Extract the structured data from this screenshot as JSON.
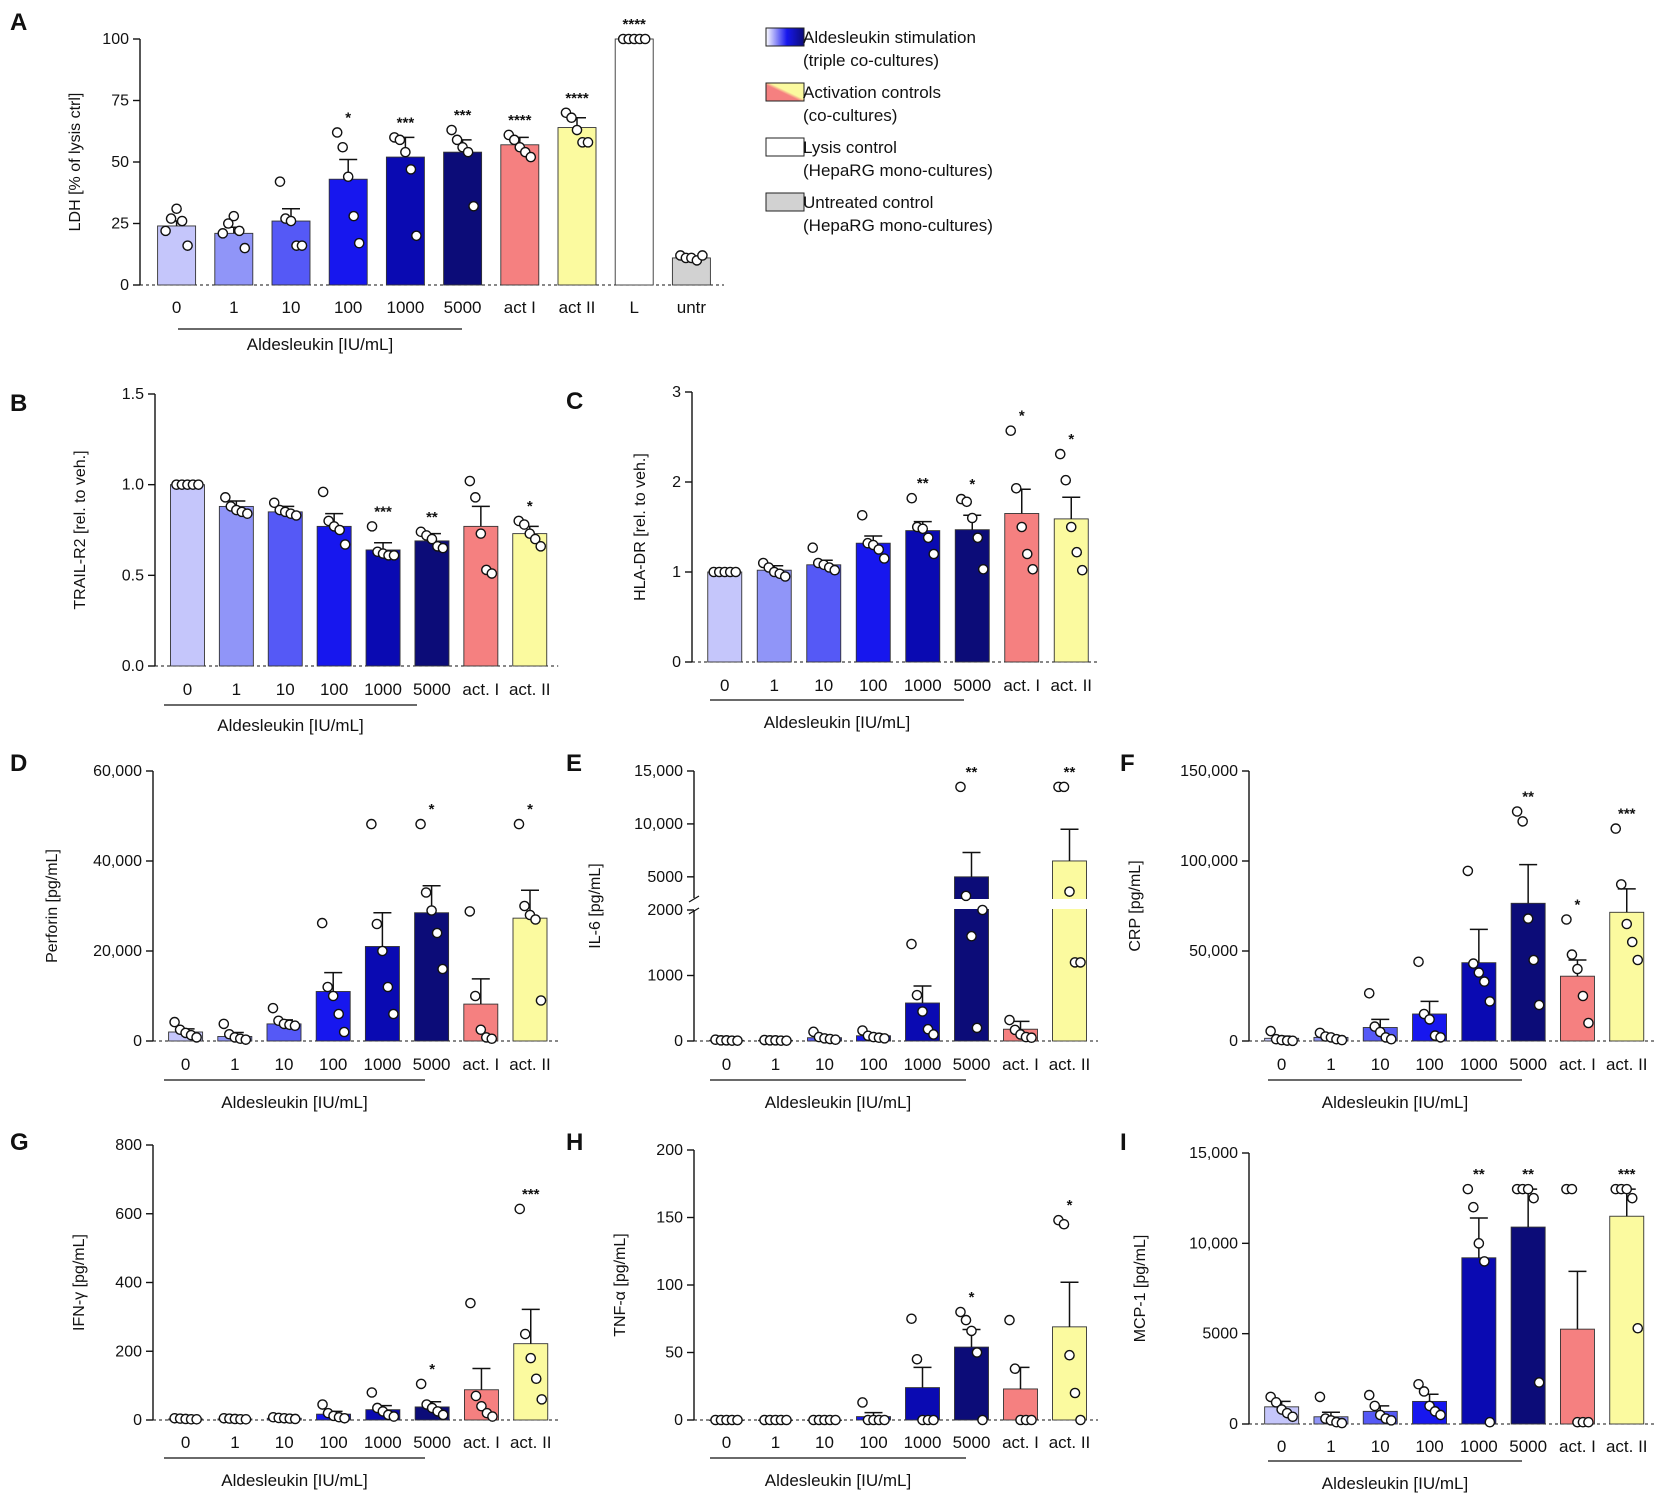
{
  "colors": {
    "c0": "#c5c6fb",
    "c1": "#9095f8",
    "c10": "#5559f6",
    "c100": "#1717ee",
    "c1000": "#0a0ab2",
    "c5000": "#0c0c78",
    "actI": "#f58080",
    "actII": "#fbfa9f",
    "L": "#ffffff",
    "untr": "#d2d2d2"
  },
  "legend": {
    "items": [
      {
        "line1": "Aldesleukin stimulation",
        "line2": "(triple co-cultures)",
        "swatch": "gradient-blue"
      },
      {
        "line1": "Activation controls",
        "line2": "(co-cultures)",
        "swatch": "gradient-redyellow"
      },
      {
        "line1": "Lysis control",
        "line2": "(HepaRG mono-cultures)",
        "swatch": "white"
      },
      {
        "line1": "Untreated control",
        "line2": "(HepaRG mono-cultures)",
        "swatch": "grey"
      }
    ]
  },
  "chart_data": [
    {
      "panel": "A",
      "type": "bar",
      "ylabel": "LDH [% of lysis ctrl]",
      "ylim": [
        0,
        100
      ],
      "yticks": [
        0,
        25,
        50,
        75,
        100
      ],
      "ytick_labels": [
        "0",
        "25",
        "50",
        "75",
        "100"
      ],
      "categories": [
        "0",
        "1",
        "10",
        "100",
        "1000",
        "5000",
        "act I",
        "act II",
        "L",
        "untr"
      ],
      "colors": [
        "c0",
        "c1",
        "c10",
        "c100",
        "c1000",
        "c5000",
        "actI",
        "actII",
        "L",
        "untr"
      ],
      "values": [
        24,
        21,
        26,
        43,
        52,
        54,
        57,
        64,
        100,
        11
      ],
      "errors": [
        2,
        2.5,
        5,
        8,
        8,
        5,
        3,
        4,
        0,
        0.6
      ],
      "points": [
        [
          22,
          27,
          31,
          26,
          16
        ],
        [
          21,
          25,
          28,
          22,
          15
        ],
        [
          42,
          27,
          26,
          16,
          16
        ],
        [
          62,
          56,
          44,
          28,
          17
        ],
        [
          60,
          59,
          54,
          47,
          20
        ],
        [
          63,
          59,
          56,
          54,
          32
        ],
        [
          61,
          59,
          56,
          54,
          52
        ],
        [
          70,
          68,
          63,
          58,
          58
        ],
        [
          100,
          100,
          100,
          100,
          100
        ],
        [
          12,
          11,
          11,
          10,
          12
        ]
      ],
      "stars": [
        "",
        "",
        "",
        "*",
        "***",
        "***",
        "****",
        "****",
        "****",
        ""
      ],
      "group_label": "Aldesleukin [IU/mL]"
    },
    {
      "panel": "B",
      "type": "bar",
      "ylabel": "TRAIL-R2 [rel. to veh.]",
      "ylim": [
        0,
        1.5
      ],
      "yticks": [
        0,
        0.5,
        1,
        1.5
      ],
      "ytick_labels": [
        "0.0",
        "0.5",
        "1.0",
        "1.5"
      ],
      "categories": [
        "0",
        "1",
        "10",
        "100",
        "1000",
        "5000",
        "act. I",
        "act. II"
      ],
      "colors": [
        "c0",
        "c1",
        "c10",
        "c100",
        "c1000",
        "c5000",
        "actI",
        "actII"
      ],
      "values": [
        1.0,
        0.88,
        0.85,
        0.77,
        0.64,
        0.69,
        0.77,
        0.73
      ],
      "errors": [
        0,
        0.03,
        0.03,
        0.07,
        0.04,
        0.04,
        0.11,
        0.04
      ],
      "points": [
        [
          1,
          1,
          1,
          1,
          1
        ],
        [
          0.93,
          0.88,
          0.86,
          0.85,
          0.84
        ],
        [
          0.9,
          0.86,
          0.85,
          0.84,
          0.83
        ],
        [
          0.96,
          0.8,
          0.77,
          0.75,
          0.67
        ],
        [
          0.77,
          0.63,
          0.62,
          0.61,
          0.61
        ],
        [
          0.74,
          0.72,
          0.7,
          0.66,
          0.65
        ],
        [
          1.02,
          0.93,
          0.73,
          0.53,
          0.51
        ],
        [
          0.8,
          0.78,
          0.73,
          0.7,
          0.66
        ]
      ],
      "stars": [
        "",
        "",
        "",
        "",
        "***",
        "**",
        "",
        "*"
      ],
      "group_label": "Aldesleukin [IU/mL]"
    },
    {
      "panel": "C",
      "type": "bar",
      "ylabel": "HLA-DR [rel. to veh.]",
      "ylim": [
        0,
        3
      ],
      "yticks": [
        0,
        1,
        2,
        3
      ],
      "ytick_labels": [
        "0",
        "1",
        "2",
        "3"
      ],
      "categories": [
        "0",
        "1",
        "10",
        "100",
        "1000",
        "5000",
        "act. I",
        "act. II"
      ],
      "colors": [
        "c0",
        "c1",
        "c10",
        "c100",
        "c1000",
        "c5000",
        "actI",
        "actII"
      ],
      "values": [
        1.0,
        1.02,
        1.08,
        1.32,
        1.46,
        1.47,
        1.65,
        1.59
      ],
      "errors": [
        0,
        0.05,
        0.05,
        0.08,
        0.1,
        0.16,
        0.27,
        0.24
      ],
      "points": [
        [
          1,
          1,
          1,
          1,
          1
        ],
        [
          1.1,
          1.05,
          1.0,
          0.98,
          0.95
        ],
        [
          1.27,
          1.1,
          1.08,
          1.05,
          1.02
        ],
        [
          1.63,
          1.32,
          1.3,
          1.25,
          1.15
        ],
        [
          1.82,
          1.5,
          1.48,
          1.38,
          1.2
        ],
        [
          1.81,
          1.78,
          1.6,
          1.38,
          1.03
        ],
        [
          2.57,
          1.93,
          1.5,
          1.2,
          1.03
        ],
        [
          2.31,
          2.02,
          1.5,
          1.22,
          1.02
        ]
      ],
      "stars": [
        "",
        "",
        "",
        "",
        "**",
        "*",
        "*",
        "*"
      ],
      "group_label": "Aldesleukin [IU/mL]"
    },
    {
      "panel": "D",
      "type": "bar",
      "ylabel": "Perforin [pg/mL]",
      "ylim": [
        0,
        60000
      ],
      "yticks": [
        0,
        20000,
        40000,
        60000
      ],
      "ytick_labels": [
        "0",
        "20,000",
        "40,000",
        "60,000"
      ],
      "categories": [
        "0",
        "1",
        "10",
        "100",
        "1000",
        "5000",
        "act. I",
        "act. II"
      ],
      "colors": [
        "c0",
        "c1",
        "c10",
        "c100",
        "c1000",
        "c5000",
        "actI",
        "actII"
      ],
      "values": [
        2000,
        1000,
        3800,
        11000,
        21000,
        28500,
        8200,
        27300
      ],
      "errors": [
        700,
        900,
        900,
        4200,
        7500,
        6000,
        5600,
        6200
      ],
      "points": [
        [
          4200,
          2500,
          1800,
          1300,
          800
        ],
        [
          3800,
          1500,
          800,
          500,
          300
        ],
        [
          7300,
          4500,
          3800,
          3600,
          3400
        ],
        [
          26200,
          12000,
          10000,
          6000,
          2000
        ],
        [
          48200,
          26000,
          20000,
          12000,
          6000
        ],
        [
          48200,
          33000,
          29000,
          24000,
          16000
        ],
        [
          28800,
          10000,
          2500,
          800,
          500
        ],
        [
          48200,
          30000,
          28000,
          27000,
          9000
        ]
      ],
      "stars": [
        "",
        "",
        "",
        "",
        "",
        "*",
        "",
        "*"
      ],
      "group_label": "Aldesleukin [IU/mL]"
    },
    {
      "panel": "E",
      "type": "bar",
      "ylabel": "IL-6 [pg/mL]",
      "axis": "broken",
      "lower": {
        "ylim": [
          0,
          2000
        ],
        "yticks": [
          0,
          1000,
          2000
        ],
        "ytick_labels": [
          "0",
          "1000",
          "2000"
        ]
      },
      "upper": {
        "ylim": [
          3000,
          15000
        ],
        "yticks": [
          5000,
          10000,
          15000
        ],
        "ytick_labels": [
          "5000",
          "10,000",
          "15,000"
        ]
      },
      "categories": [
        "0",
        "1",
        "10",
        "100",
        "1000",
        "5000",
        "act. I",
        "act. II"
      ],
      "colors": [
        "c0",
        "c1",
        "c10",
        "c100",
        "c1000",
        "c5000",
        "actI",
        "actII"
      ],
      "values": [
        10,
        10,
        50,
        80,
        580,
        5000,
        180,
        6500
      ],
      "errors": [
        5,
        5,
        30,
        30,
        260,
        2300,
        120,
        3000
      ],
      "points": [
        [
          20,
          10,
          10,
          5,
          5
        ],
        [
          15,
          10,
          10,
          5,
          5
        ],
        [
          140,
          60,
          40,
          30,
          20
        ],
        [
          160,
          80,
          60,
          50,
          40
        ],
        [
          1480,
          700,
          450,
          180,
          100
        ],
        [
          13500,
          3200,
          1600,
          200,
          2000
        ],
        [
          320,
          170,
          100,
          60,
          50
        ],
        [
          13500,
          13500,
          3600,
          1200,
          1200
        ]
      ],
      "stars": [
        "",
        "",
        "",
        "",
        "",
        "**",
        "",
        "**"
      ],
      "group_label": "Aldesleukin [IU/mL]"
    },
    {
      "panel": "F",
      "type": "bar",
      "ylabel": "CRP [pg/mL]",
      "ylim": [
        0,
        150000
      ],
      "yticks": [
        0,
        50000,
        100000,
        150000
      ],
      "ytick_labels": [
        "0",
        "50,000",
        "100,000",
        "150,000"
      ],
      "categories": [
        "0",
        "1",
        "10",
        "100",
        "1000",
        "5000",
        "act. I",
        "act. II"
      ],
      "colors": [
        "c0",
        "c1",
        "c10",
        "c100",
        "c1000",
        "c5000",
        "actI",
        "actII"
      ],
      "values": [
        1500,
        2000,
        7500,
        15000,
        43500,
        76500,
        36000,
        71500
      ],
      "errors": [
        1200,
        1000,
        4500,
        7000,
        18500,
        21500,
        9000,
        13000
      ],
      "points": [
        [
          5500,
          1000,
          500,
          200,
          100
        ],
        [
          4500,
          2500,
          2000,
          1000,
          500
        ],
        [
          26500,
          8000,
          5000,
          2000,
          1000
        ],
        [
          44000,
          15000,
          12000,
          3000,
          2000
        ],
        [
          94500,
          43000,
          38000,
          33000,
          22000
        ],
        [
          127500,
          122000,
          68000,
          45000,
          20000
        ],
        [
          67500,
          48000,
          40000,
          25000,
          10000
        ],
        [
          118000,
          87000,
          65000,
          55000,
          45000
        ]
      ],
      "stars": [
        "",
        "",
        "",
        "",
        "",
        "**",
        "*",
        "***"
      ],
      "group_label": "Aldesleukin [IU/mL]"
    },
    {
      "panel": "G",
      "type": "bar",
      "ylabel": "IFN-γ [pg/mL]",
      "ylim": [
        0,
        800
      ],
      "yticks": [
        0,
        200,
        400,
        600,
        800
      ],
      "ytick_labels": [
        "0",
        "200",
        "400",
        "600",
        "800"
      ],
      "categories": [
        "0",
        "1",
        "10",
        "100",
        "1000",
        "5000",
        "act. I",
        "act. II"
      ],
      "colors": [
        "c0",
        "c1",
        "c10",
        "c100",
        "c1000",
        "c5000",
        "actI",
        "actII"
      ],
      "values": [
        3,
        3,
        5,
        17,
        30,
        38,
        88,
        222
      ],
      "errors": [
        2,
        2,
        2,
        8,
        12,
        15,
        62,
        100
      ],
      "points": [
        [
          5,
          4,
          3,
          2,
          2
        ],
        [
          5,
          4,
          3,
          2,
          2
        ],
        [
          8,
          6,
          5,
          4,
          3
        ],
        [
          45,
          20,
          12,
          8,
          5
        ],
        [
          80,
          35,
          25,
          15,
          10
        ],
        [
          105,
          45,
          35,
          25,
          15
        ],
        [
          340,
          70,
          40,
          20,
          10
        ],
        [
          614,
          250,
          180,
          120,
          60
        ]
      ],
      "stars": [
        "",
        "",
        "",
        "",
        "",
        "*",
        "",
        "***"
      ],
      "group_label": "Aldesleukin [IU/mL]"
    },
    {
      "panel": "H",
      "type": "bar",
      "ylabel": "TNF-α [pg/mL]",
      "ylim": [
        0,
        200
      ],
      "yticks": [
        0,
        50,
        100,
        150,
        200
      ],
      "ytick_labels": [
        "0",
        "50",
        "100",
        "150",
        "200"
      ],
      "categories": [
        "0",
        "1",
        "10",
        "100",
        "1000",
        "5000",
        "act. I",
        "act. II"
      ],
      "colors": [
        "c0",
        "c1",
        "c10",
        "c100",
        "c1000",
        "c5000",
        "actI",
        "actII"
      ],
      "values": [
        0,
        0,
        0,
        2.5,
        24,
        54,
        23,
        69
      ],
      "errors": [
        0,
        0,
        0,
        3,
        15,
        13,
        16,
        33
      ],
      "points": [
        [
          0,
          0,
          0,
          0,
          0
        ],
        [
          0,
          0,
          0,
          0,
          0
        ],
        [
          0,
          0,
          0,
          0,
          0
        ],
        [
          13,
          0,
          0,
          0,
          0
        ],
        [
          75,
          45,
          0,
          0,
          0
        ],
        [
          80,
          74,
          66,
          50,
          0
        ],
        [
          74,
          38,
          0,
          0,
          0
        ],
        [
          148,
          145,
          48,
          20,
          0
        ]
      ],
      "stars": [
        "",
        "",
        "",
        "",
        "",
        "*",
        "",
        "*"
      ],
      "group_label": "Aldesleukin [IU/mL]"
    },
    {
      "panel": "I",
      "type": "bar",
      "ylabel": "MCP-1 [pg/mL]",
      "ylim": [
        0,
        15000
      ],
      "yticks": [
        0,
        5000,
        10000,
        15000
      ],
      "ytick_labels": [
        "0",
        "5000",
        "10,000",
        "15,000"
      ],
      "categories": [
        "0",
        "1",
        "10",
        "100",
        "1000",
        "5000",
        "act. I",
        "act. II"
      ],
      "colors": [
        "c0",
        "c1",
        "c10",
        "c100",
        "c1000",
        "c5000",
        "actI",
        "actII"
      ],
      "values": [
        950,
        400,
        700,
        1250,
        9200,
        10900,
        5250,
        11500
      ],
      "errors": [
        300,
        250,
        300,
        400,
        2200,
        2100,
        3200,
        1500
      ],
      "points": [
        [
          1500,
          1200,
          800,
          600,
          400
        ],
        [
          1500,
          300,
          200,
          100,
          50
        ],
        [
          1600,
          1000,
          500,
          300,
          200
        ],
        [
          2200,
          1800,
          1000,
          700,
          500
        ],
        [
          13000,
          12000,
          10000,
          9000,
          100
        ],
        [
          13000,
          13000,
          13000,
          12500,
          2300
        ],
        [
          13000,
          13000,
          100,
          100,
          100
        ],
        [
          13000,
          13000,
          13000,
          12500,
          5300
        ]
      ],
      "stars": [
        "",
        "",
        "",
        "",
        "**",
        "**",
        "",
        "***"
      ],
      "group_label": "Aldesleukin [IU/mL]"
    }
  ]
}
